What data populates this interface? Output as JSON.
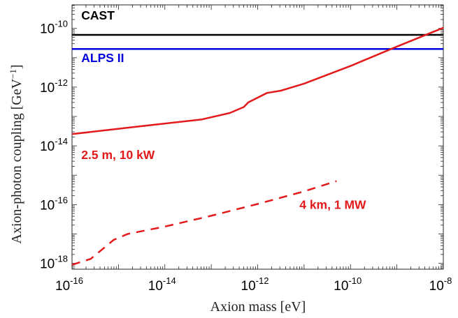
{
  "chart_data": {
    "type": "line",
    "xlabel": "Axion mass [eV]",
    "ylabel": "Axion-photon coupling [GeV",
    "ylabel_sup": "−1",
    "ylabel_end": "]",
    "xscale": "log",
    "yscale": "log",
    "xlim_exp": [
      -16,
      -8
    ],
    "ylim_exp": [
      -18.2,
      -9.2
    ],
    "x_ticks": [
      {
        "base": "10",
        "exp": "-16"
      },
      {
        "base": "10",
        "exp": "-14"
      },
      {
        "base": "10",
        "exp": "-12"
      },
      {
        "base": "10",
        "exp": "-10"
      },
      {
        "base": "10",
        "exp": "-8"
      }
    ],
    "y_ticks": [
      {
        "base": "10",
        "exp": "-18"
      },
      {
        "base": "10",
        "exp": "-16"
      },
      {
        "base": "10",
        "exp": "-14"
      },
      {
        "base": "10",
        "exp": "-12"
      },
      {
        "base": "10",
        "exp": "-10"
      }
    ],
    "grid": false,
    "series": [
      {
        "name": "CAST",
        "color": "#000000",
        "style": "solid",
        "log10_x": [
          -16,
          -8
        ],
        "log10_y": [
          -10.22,
          -10.22
        ]
      },
      {
        "name": "ALPS II",
        "color": "#0000dd",
        "style": "solid",
        "log10_x": [
          -16,
          -8
        ],
        "log10_y": [
          -10.7,
          -10.7
        ]
      },
      {
        "name": "2.5 m, 10 kW",
        "color": "#e31a1c",
        "style": "solid",
        "log10_x": [
          -16,
          -14.5,
          -13.2,
          -12.6,
          -12.3,
          -12.2,
          -11.8,
          -11.5,
          -11,
          -10,
          -9,
          -8
        ],
        "log10_y": [
          -13.6,
          -13.33,
          -13.1,
          -12.88,
          -12.68,
          -12.52,
          -12.2,
          -12.12,
          -11.88,
          -11.28,
          -10.62,
          -9.98
        ]
      },
      {
        "name": "4 km, 1 MW",
        "color": "#e31a1c",
        "style": "dashed",
        "log10_x": [
          -16,
          -15.6,
          -15.1,
          -14.8,
          -14,
          -13,
          -12,
          -11,
          -10.3
        ],
        "log10_y": [
          -18.05,
          -17.85,
          -17.2,
          -17.0,
          -16.75,
          -16.38,
          -15.98,
          -15.55,
          -15.2
        ]
      }
    ],
    "annotations": [
      {
        "text": "CAST",
        "color": "#000000",
        "log10_x": -15.8,
        "log10_y": -9.7
      },
      {
        "text": "ALPS II",
        "color": "#0000dd",
        "log10_x": -15.8,
        "log10_y": -11.15
      },
      {
        "text": "2.5 m, 10 kW",
        "color": "#e31a1c",
        "log10_x": -15.8,
        "log10_y": -14.45
      },
      {
        "text": "4 km, 1 MW",
        "color": "#e31a1c",
        "log10_x": -11.1,
        "log10_y": -16.15
      }
    ]
  }
}
